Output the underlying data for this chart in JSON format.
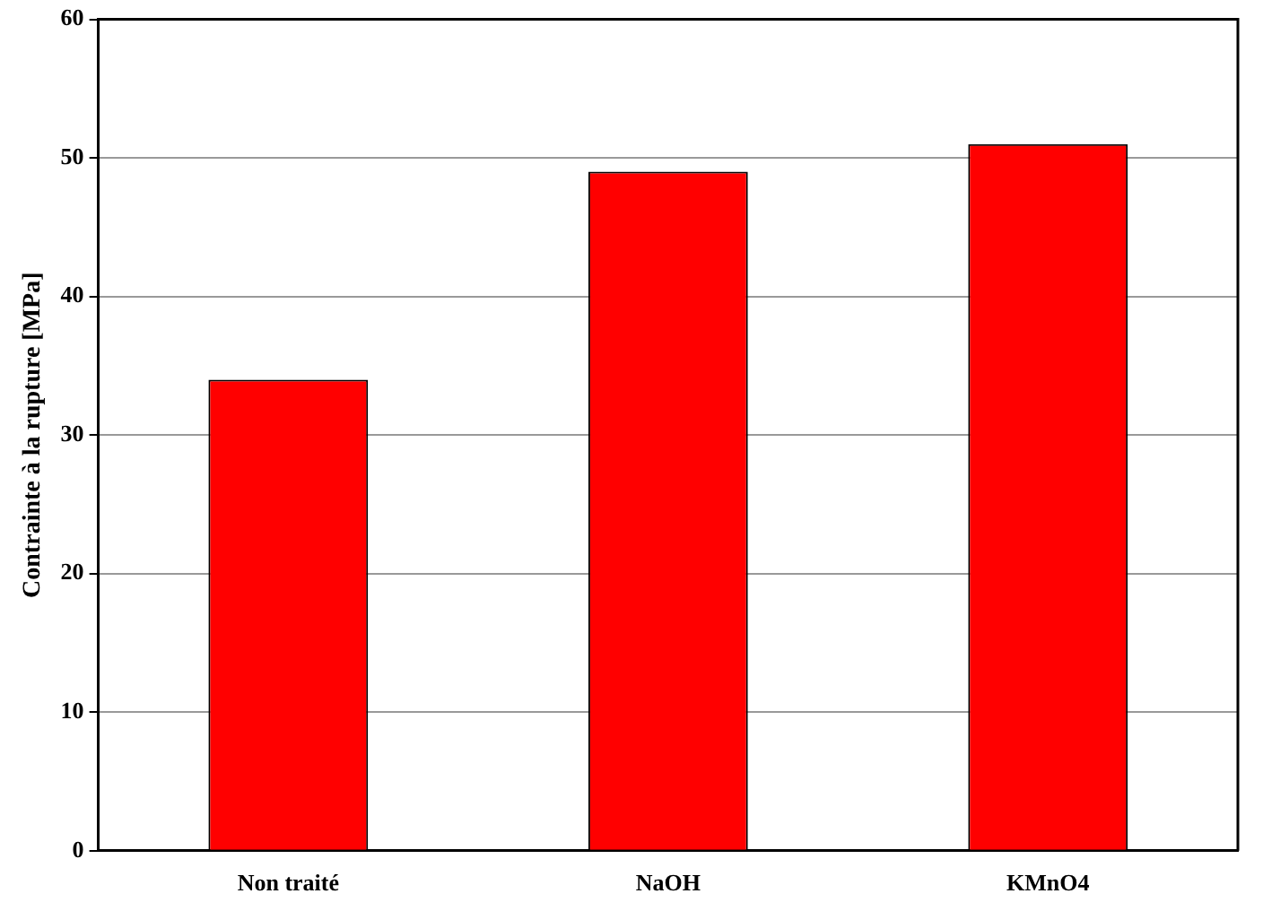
{
  "chart_data": {
    "type": "bar",
    "ylabel": "Contrainte à la rupture [MPa]",
    "categories": [
      "Non traité",
      "NaOH",
      "KMnO4"
    ],
    "values": [
      34,
      49,
      51
    ],
    "color": "#ff0000",
    "ylim": [
      0,
      60
    ],
    "yticks": [
      0,
      10,
      20,
      30,
      40,
      50,
      60
    ],
    "grid": "y",
    "legend": false
  }
}
